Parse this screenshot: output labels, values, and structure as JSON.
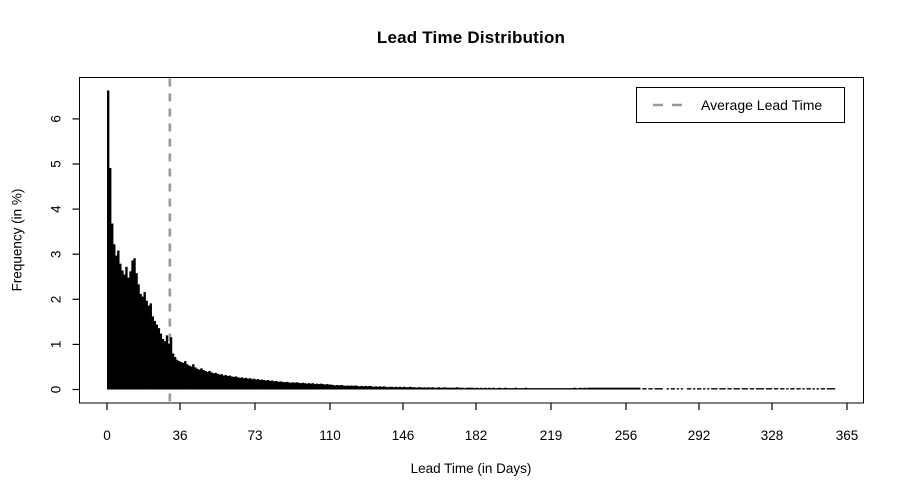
{
  "chart_data": {
    "type": "bar",
    "subtype": "histogram",
    "title": "Lead Time Distribution",
    "xlabel": "Lead Time (in Days)",
    "ylabel": "Frequency (in %)",
    "xlim": [
      0,
      365
    ],
    "ylim": [
      0,
      6.9
    ],
    "grid": false,
    "bar_color": "#000000",
    "bin_width_days": 1,
    "x_ticks": [
      0,
      36,
      73,
      110,
      146,
      182,
      219,
      256,
      292,
      328,
      365
    ],
    "y_ticks": [
      0,
      1,
      2,
      3,
      4,
      5,
      6
    ],
    "average_line": {
      "label": "Average Lead Time",
      "day": 31,
      "color": "#999999",
      "style": "dashed"
    },
    "legend_position": "top-right",
    "values": [
      6.63,
      4.91,
      3.68,
      3.22,
      2.97,
      3.08,
      2.79,
      2.64,
      2.55,
      2.72,
      2.48,
      2.62,
      2.86,
      2.91,
      2.58,
      2.33,
      2.12,
      2.06,
      2.16,
      1.97,
      1.86,
      1.91,
      1.62,
      1.52,
      1.44,
      1.36,
      1.24,
      1.12,
      1.07,
      1.2,
      1.02,
      1.16,
      0.8,
      0.72,
      0.66,
      0.63,
      0.61,
      0.59,
      0.63,
      0.56,
      0.53,
      0.51,
      0.56,
      0.49,
      0.46,
      0.44,
      0.47,
      0.43,
      0.41,
      0.39,
      0.41,
      0.38,
      0.36,
      0.37,
      0.35,
      0.33,
      0.34,
      0.31,
      0.32,
      0.3,
      0.31,
      0.29,
      0.28,
      0.29,
      0.27,
      0.26,
      0.27,
      0.25,
      0.26,
      0.24,
      0.25,
      0.23,
      0.24,
      0.22,
      0.23,
      0.21,
      0.22,
      0.21,
      0.2,
      0.21,
      0.19,
      0.2,
      0.18,
      0.19,
      0.17,
      0.18,
      0.17,
      0.16,
      0.17,
      0.16,
      0.15,
      0.16,
      0.15,
      0.16,
      0.15,
      0.14,
      0.15,
      0.14,
      0.13,
      0.14,
      0.13,
      0.14,
      0.12,
      0.13,
      0.12,
      0.13,
      0.12,
      0.11,
      0.12,
      0.11,
      0.11,
      0.1,
      0.09,
      0.1,
      0.09,
      0.1,
      0.09,
      0.08,
      0.09,
      0.08,
      0.09,
      0.08,
      0.09,
      0.08,
      0.07,
      0.08,
      0.07,
      0.08,
      0.07,
      0.08,
      0.07,
      0.06,
      0.07,
      0.06,
      0.07,
      0.06,
      0.07,
      0.06,
      0.05,
      0.06,
      0.06,
      0.05,
      0.06,
      0.05,
      0.06,
      0.05,
      0.06,
      0.05,
      0.05,
      0.06,
      0.05,
      0.05,
      0.04,
      0.05,
      0.05,
      0.04,
      0.05,
      0.04,
      0.05,
      0.04,
      0.05,
      0.04,
      0.04,
      0.05,
      0.04,
      0.04,
      0.05,
      0.04,
      0.04,
      0.04,
      0.04,
      0.04,
      0.05,
      0.04,
      0.04,
      0.04,
      0.03,
      0.04,
      0.04,
      0.04,
      0.04,
      0.03,
      0.04,
      0.03,
      0.04,
      0.03,
      0.04,
      0.03,
      0.04,
      0.03,
      0.04,
      0.03,
      0.03,
      0.04,
      0.03,
      0.03,
      0.04,
      0.03,
      0.03,
      0.03,
      0.03,
      0.04,
      0.03,
      0.03,
      0.03,
      0.03,
      0.04,
      0.03,
      0.03,
      0.03,
      0.03,
      0.03,
      0.03,
      0.03,
      0.03,
      0.03,
      0.03,
      0.03,
      0.03,
      0.03,
      0.03,
      0.03,
      0.03,
      0.03,
      0.03,
      0.03,
      0.03,
      0.03,
      0.03,
      0.03,
      0.04,
      0.03,
      0.03,
      0.04,
      0.03,
      0.04,
      0.03,
      0.04,
      0.04,
      0.04,
      0.04,
      0.04,
      0.04,
      0.04,
      0.04,
      0.04,
      0.04,
      0.04,
      0.04,
      0.04,
      0.04,
      0.04,
      0.04,
      0.04,
      0.04,
      0.04,
      0.04,
      0.04,
      0.04,
      0.04,
      0.04,
      0.04,
      0.04,
      0,
      0.03,
      0.03,
      0,
      0.03,
      0.03,
      0,
      0.03,
      0.03,
      0.03,
      0.03,
      0,
      0,
      0.03,
      0,
      0.03,
      0.03,
      0,
      0.03,
      0,
      0.03,
      0,
      0,
      0.03,
      0.03,
      0,
      0.03,
      0,
      0.03,
      0.03,
      0,
      0.03,
      0,
      0.03,
      0,
      0.03,
      0.03,
      0.03,
      0,
      0.03,
      0.03,
      0.03,
      0,
      0.03,
      0.03,
      0,
      0.03,
      0.03,
      0.03,
      0,
      0.03,
      0.03,
      0.03,
      0,
      0.03,
      0.03,
      0,
      0.03,
      0.03,
      0.03,
      0.03,
      0,
      0.03,
      0.03,
      0.03,
      0,
      0.03,
      0.03,
      0,
      0.03,
      0.03,
      0,
      0.03,
      0,
      0.03,
      0.03,
      0,
      0.03,
      0.03,
      0,
      0.03,
      0,
      0.03,
      0.03,
      0,
      0.03,
      0,
      0.03,
      0,
      0.03,
      0.03,
      0,
      0.03,
      0.03,
      0.03,
      0.03,
      0,
      0,
      0,
      0,
      0,
      0,
      0
    ]
  }
}
